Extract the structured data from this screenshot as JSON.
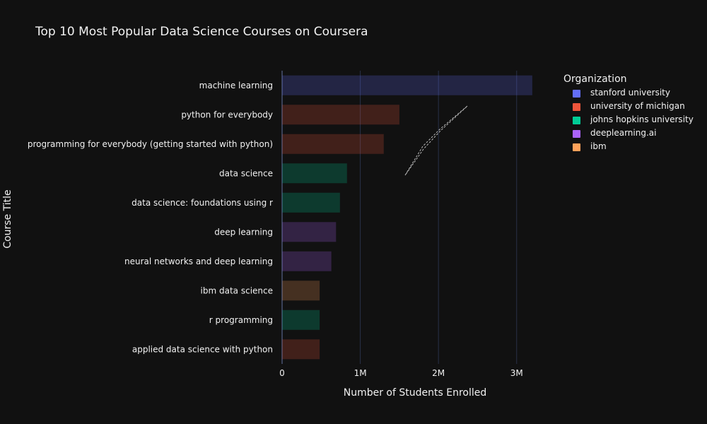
{
  "chart_data": {
    "type": "bar",
    "orientation": "horizontal",
    "title": "Top 10 Most Popular Data Science Courses on Coursera",
    "xlabel": "Number of Students Enrolled",
    "ylabel": "Course Title",
    "xlim": [
      0,
      3400000
    ],
    "xticks": [
      0,
      1000000,
      2000000,
      3000000
    ],
    "xtick_labels": [
      "0",
      "1M",
      "2M",
      "3M"
    ],
    "grid": true,
    "legend_position": "top-right",
    "legend_title": "Organization",
    "organizations": [
      {
        "name": "stanford university",
        "color": "#636efa"
      },
      {
        "name": "university of michigan",
        "color": "#ef553b"
      },
      {
        "name": "johns hopkins university",
        "color": "#00cc96"
      },
      {
        "name": "deeplearning.ai",
        "color": "#ab63fa"
      },
      {
        "name": "ibm",
        "color": "#ffa15a"
      }
    ],
    "bars": [
      {
        "course": "machine learning",
        "org": "stanford university",
        "value": 3200000
      },
      {
        "course": "python for everybody",
        "org": "university of michigan",
        "value": 1500000
      },
      {
        "course": "programming for everybody (getting started with python)",
        "org": "university of michigan",
        "value": 1300000
      },
      {
        "course": "data science",
        "org": "johns hopkins university",
        "value": 830000
      },
      {
        "course": "data science: foundations using r",
        "org": "johns hopkins university",
        "value": 740000
      },
      {
        "course": "deep learning",
        "org": "deeplearning.ai",
        "value": 690000
      },
      {
        "course": "neural networks and deep learning",
        "org": "deeplearning.ai",
        "value": 630000
      },
      {
        "course": "ibm data science",
        "org": "ibm",
        "value": 480000
      },
      {
        "course": "r programming",
        "org": "johns hopkins university",
        "value": 480000
      },
      {
        "course": "applied data science with python",
        "org": "university of michigan",
        "value": 480000
      }
    ]
  }
}
